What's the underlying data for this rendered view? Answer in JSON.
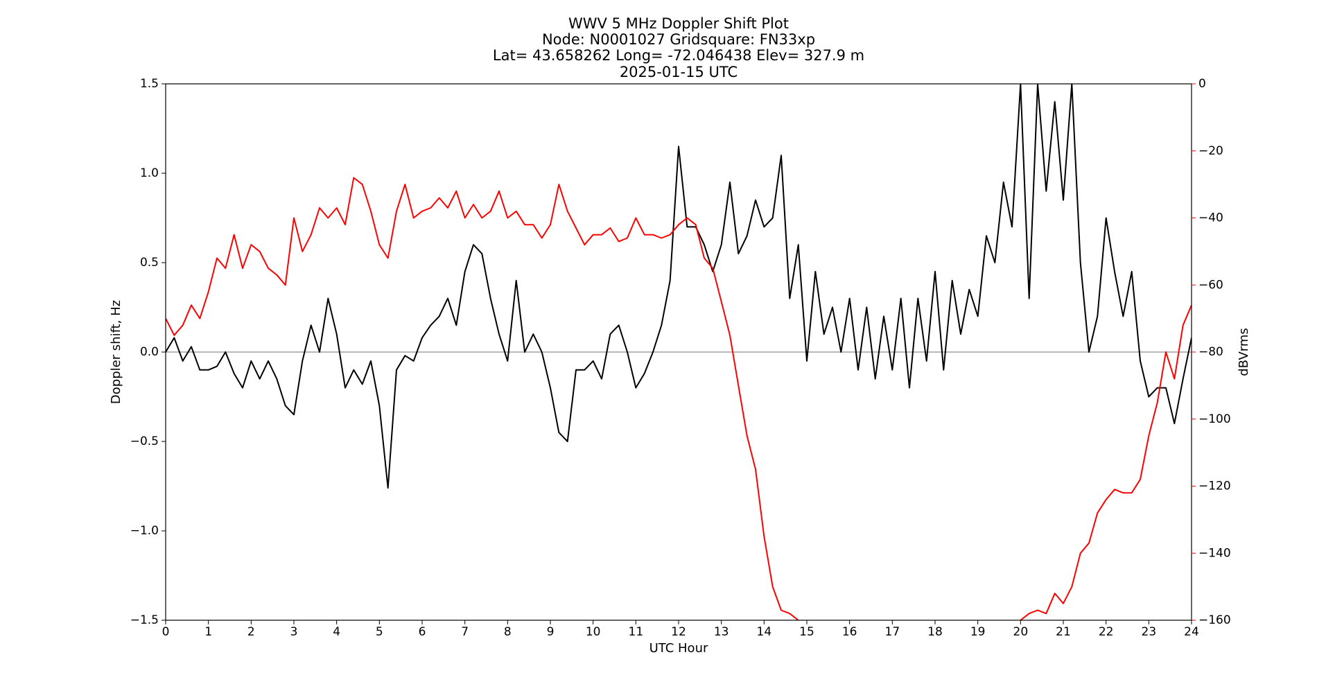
{
  "chart_data": {
    "type": "line",
    "title": [
      "WWV 5 MHz Doppler Shift Plot",
      "Node:  N0001027     Gridsquare:  FN33xp",
      "Lat=   43.658262    Long= -72.046438    Elev= 327.9 m",
      "2025-01-15  UTC"
    ],
    "x_label": "UTC Hour",
    "y_label": "Doppler shift, Hz",
    "y2_label": "dBVrms",
    "x": [
      0,
      0.2,
      0.4,
      0.6,
      0.8,
      1,
      1.2,
      1.4,
      1.6,
      1.8,
      2,
      2.2,
      2.4,
      2.6,
      2.8,
      3,
      3.2,
      3.4,
      3.6,
      3.8,
      4,
      4.2,
      4.4,
      4.6,
      4.8,
      5,
      5.2,
      5.4,
      5.6,
      5.8,
      6,
      6.2,
      6.4,
      6.6,
      6.8,
      7,
      7.2,
      7.4,
      7.6,
      7.8,
      8,
      8.2,
      8.4,
      8.6,
      8.8,
      9,
      9.2,
      9.4,
      9.6,
      9.8,
      10,
      10.2,
      10.4,
      10.6,
      10.8,
      11,
      11.2,
      11.4,
      11.6,
      11.8,
      12,
      12.2,
      12.4,
      12.6,
      12.8,
      13,
      13.2,
      13.4,
      13.6,
      13.8,
      14,
      14.2,
      14.4,
      14.6,
      14.8,
      15,
      15.2,
      15.4,
      15.6,
      15.8,
      16,
      16.2,
      16.4,
      16.6,
      16.8,
      17,
      17.2,
      17.4,
      17.6,
      17.8,
      18,
      18.2,
      18.4,
      18.6,
      18.8,
      19,
      19.2,
      19.4,
      19.6,
      19.8,
      20,
      20.2,
      20.4,
      20.6,
      20.8,
      21,
      21.2,
      21.4,
      21.6,
      21.8,
      22,
      22.2,
      22.4,
      22.6,
      22.8,
      23,
      23.2,
      23.4,
      23.6,
      23.8,
      24
    ],
    "series": [
      {
        "name": "Doppler shift",
        "color": "#000000",
        "values": [
          0,
          0.08,
          -0.05,
          0.03,
          -0.1,
          -0.1,
          -0.08,
          0,
          -0.12,
          -0.2,
          -0.05,
          -0.15,
          -0.05,
          -0.15,
          -0.3,
          -0.35,
          -0.05,
          0.15,
          0,
          0.3,
          0.1,
          -0.2,
          -0.1,
          -0.18,
          -0.05,
          -0.3,
          -0.76,
          -0.1,
          -0.02,
          -0.05,
          0.08,
          0.15,
          0.2,
          0.3,
          0.15,
          0.45,
          0.6,
          0.55,
          0.3,
          0.1,
          -0.05,
          0.4,
          0,
          0.1,
          0,
          -0.2,
          -0.45,
          -0.5,
          -0.1,
          -0.1,
          -0.05,
          -0.15,
          0.1,
          0.15,
          0,
          -0.2,
          -0.12,
          0,
          0.15,
          0.4,
          1.15,
          0.7,
          0.7,
          0.6,
          0.45,
          0.6,
          0.95,
          0.55,
          0.65,
          0.85,
          0.7,
          0.75,
          1.1,
          0.3,
          0.6,
          -0.05,
          0.45,
          0.1,
          0.25,
          0,
          0.3,
          -0.1,
          0.25,
          -0.15,
          0.2,
          -0.1,
          0.3,
          -0.2,
          0.3,
          -0.05,
          0.45,
          -0.1,
          0.4,
          0.1,
          0.35,
          0.2,
          0.65,
          0.5,
          0.95,
          0.7,
          1.5,
          0.3,
          1.5,
          0.9,
          1.4,
          0.85,
          1.5,
          0.5,
          0,
          0.2,
          0.75,
          0.45,
          0.2,
          0.45,
          -0.05,
          -0.25,
          -0.2,
          -0.2,
          -0.4,
          -0.15,
          0.08
        ]
      },
      {
        "name": "dBVrms",
        "color": "#ff0000",
        "axis": "y2",
        "values": [
          -70,
          -75,
          -72,
          -66,
          -70,
          -62,
          -52,
          -55,
          -45,
          -55,
          -48,
          -50,
          -55,
          -57,
          -60,
          -40,
          -50,
          -45,
          -37,
          -40,
          -37,
          -42,
          -28,
          -30,
          -38,
          -48,
          -52,
          -38,
          -30,
          -40,
          -38,
          -37,
          -34,
          -37,
          -32,
          -40,
          -36,
          -40,
          -38,
          -32,
          -40,
          -38,
          -42,
          -42,
          -46,
          -42,
          -30,
          -38,
          -43,
          -48,
          -45,
          -45,
          -43,
          -47,
          -46,
          -40,
          -45,
          -45,
          -46,
          -45,
          -42,
          -40,
          -42,
          -52,
          -55,
          -65,
          -75,
          -90,
          -105,
          -115,
          -135,
          -150,
          -157,
          -158,
          -160,
          -162,
          -162,
          -162,
          -162,
          -162,
          -162,
          -162,
          -162,
          -162,
          -162,
          -162,
          -162,
          -162,
          -162,
          -162,
          -162,
          -162,
          -162,
          -162,
          -162,
          -162,
          -162,
          -162,
          -162,
          -162,
          -160,
          -158,
          -157,
          -158,
          -152,
          -155,
          -150,
          -140,
          -137,
          -128,
          -124,
          -121,
          -122,
          -122,
          -118,
          -105,
          -95,
          -80,
          -88,
          -72,
          -66
        ]
      }
    ],
    "xlim": [
      0,
      24
    ],
    "xticks": [
      0,
      1,
      2,
      3,
      4,
      5,
      6,
      7,
      8,
      9,
      10,
      11,
      12,
      13,
      14,
      15,
      16,
      17,
      18,
      19,
      20,
      21,
      22,
      23,
      24
    ],
    "ylim": [
      -1.5,
      1.5
    ],
    "yticks": [
      {
        "value": -1.5,
        "label": "−1.5"
      },
      {
        "value": -1,
        "label": "−1.0"
      },
      {
        "value": -0.5,
        "label": "−0.5"
      },
      {
        "value": 0,
        "label": "0.0"
      },
      {
        "value": 0.5,
        "label": "0.5"
      },
      {
        "value": 1,
        "label": "1.0"
      },
      {
        "value": 1.5,
        "label": "1.5"
      }
    ],
    "y2lim": [
      -160,
      0
    ],
    "y2ticks": [
      {
        "value": -160,
        "label": "−160"
      },
      {
        "value": -140,
        "label": "−140"
      },
      {
        "value": -120,
        "label": "−120"
      },
      {
        "value": -100,
        "label": "−100"
      },
      {
        "value": -80,
        "label": "−80"
      },
      {
        "value": -60,
        "label": "−60"
      },
      {
        "value": -40,
        "label": "−40"
      },
      {
        "value": -20,
        "label": "−20"
      },
      0
    ],
    "reference_line": {
      "value": 0,
      "color": "#a0a0a0"
    },
    "grid": false
  }
}
